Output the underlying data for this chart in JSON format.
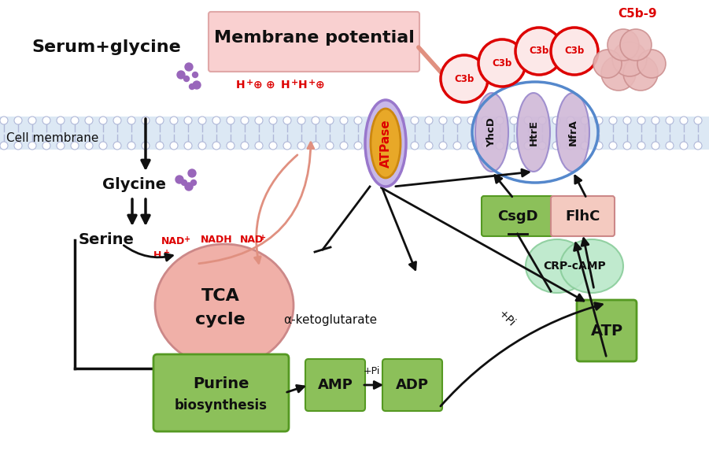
{
  "bg_color": "#ffffff",
  "serum_text": "Serum+glycine",
  "cell_membrane_text": "Cell membrane",
  "membrane_potential_text": "Membrane potential",
  "mp_box_color": "#f9d0d0",
  "tca_color": "#f0b0a8",
  "purine_color": "#8cc05a",
  "amp_color": "#8cc05a",
  "adp_color": "#8cc05a",
  "atp_color": "#8cc05a",
  "csgd_color": "#8cc05a",
  "flhc_color": "#f4cac0",
  "crp_color": "#b8e8c8",
  "red": "#dd0000",
  "black": "#101010",
  "salmon": "#e09080",
  "purple": "#9966bb",
  "mem_fill": "#dce8f4",
  "mem_line": "#b0b8d8"
}
